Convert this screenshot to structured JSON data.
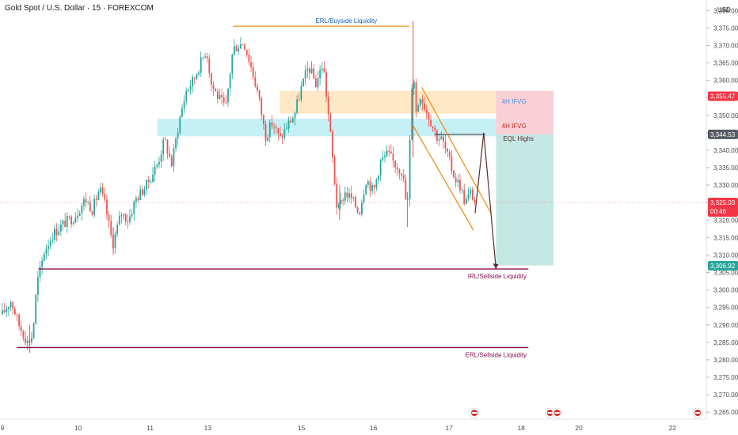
{
  "header": {
    "symbol_title": "Gold Spot / U.S. Dollar · 15 · FOREXCOM",
    "currency": "USD"
  },
  "colors": {
    "up": "#26a69a",
    "down": "#ef5350",
    "orange": "#f0901e",
    "darkred": "#880e4f",
    "red_label": "#f23645",
    "blue_zone": "#b2ebf2",
    "orange_zone": "#ffe0b2",
    "pink_zone": "#f8c4cb",
    "teal_zone": "#b2dfdb",
    "pink_text": "#e57373",
    "blue_text": "#1e88e5"
  },
  "chart_data": {
    "type": "candlestick",
    "title": "Gold Spot / U.S. Dollar · 15 · FOREXCOM",
    "ylim": [
      3263,
      3383
    ],
    "y_ticks": [
      3380,
      3375,
      3370,
      3365,
      3360,
      3355,
      3350,
      3345,
      3340,
      3335,
      3330,
      3325,
      3320,
      3315,
      3310,
      3305,
      3300,
      3295,
      3290,
      3285,
      3280,
      3275,
      3270,
      3265
    ],
    "y_tick_labels": [
      "3,380.00",
      "3,375.00",
      "3,370.00",
      "3,365.00",
      "3,360.00",
      "3,355.00",
      "3,350.00",
      "3,345.00",
      "3,340.00",
      "3,335.00",
      "3,330.00",
      "3,325.00",
      "3,320.00",
      "3,315.00",
      "3,310.00",
      "3,305.00",
      "3,300.00",
      "3,295.00",
      "3,290.00",
      "3,285.00",
      "3,280.00",
      "3,275.00",
      "3,270.00",
      "3,265.00"
    ],
    "x_ticks": [
      {
        "label": "9",
        "t": 0
      },
      {
        "label": "10",
        "t": 10.5
      },
      {
        "label": "11",
        "t": 20.5
      },
      {
        "label": "13",
        "t": 28.5
      },
      {
        "label": "15",
        "t": 41.5
      },
      {
        "label": "16",
        "t": 51.5
      },
      {
        "label": "17",
        "t": 62
      },
      {
        "label": "18",
        "t": 72
      },
      {
        "label": "20",
        "t": 80
      },
      {
        "label": "22",
        "t": 93
      }
    ],
    "anchors": [
      [
        0,
        3293
      ],
      [
        1.2,
        3297
      ],
      [
        2.3,
        3290
      ],
      [
        3.5,
        3285
      ],
      [
        4.2,
        3287
      ],
      [
        4.8,
        3302
      ],
      [
        5.3,
        3306
      ],
      [
        5.8,
        3311
      ],
      [
        7,
        3316
      ],
      [
        8.5,
        3319
      ],
      [
        10,
        3321
      ],
      [
        11.5,
        3326
      ],
      [
        12.5,
        3323
      ],
      [
        13.5,
        3329
      ],
      [
        14.3,
        3324
      ],
      [
        15.3,
        3313
      ],
      [
        16.5,
        3322
      ],
      [
        17.5,
        3320
      ],
      [
        18.5,
        3326
      ],
      [
        20,
        3330
      ],
      [
        21.5,
        3336
      ],
      [
        22.5,
        3343
      ],
      [
        23.5,
        3336
      ],
      [
        24.5,
        3348
      ],
      [
        25.5,
        3357
      ],
      [
        26.5,
        3360
      ],
      [
        27.5,
        3365
      ],
      [
        28.3,
        3369
      ],
      [
        29,
        3359
      ],
      [
        30,
        3355
      ],
      [
        31,
        3352
      ],
      [
        32,
        3369
      ],
      [
        33.5,
        3371
      ],
      [
        34.5,
        3364
      ],
      [
        35.5,
        3356
      ],
      [
        36.5,
        3344
      ],
      [
        37.5,
        3348
      ],
      [
        38.5,
        3343
      ],
      [
        39.5,
        3347
      ],
      [
        40.5,
        3350
      ],
      [
        41.5,
        3358
      ],
      [
        42.5,
        3364
      ],
      [
        43.5,
        3359
      ],
      [
        44.5,
        3365
      ],
      [
        45.5,
        3345
      ],
      [
        46.5,
        3322
      ],
      [
        47.5,
        3328
      ],
      [
        48.5,
        3326
      ],
      [
        49.5,
        3322
      ],
      [
        50.5,
        3332
      ],
      [
        51.5,
        3328
      ],
      [
        52.5,
        3337
      ],
      [
        53.5,
        3339
      ],
      [
        54.5,
        3336
      ],
      [
        55.5,
        3334
      ],
      [
        56.2,
        3322
      ],
      [
        57,
        3368
      ],
      [
        57.3,
        3350
      ],
      [
        58,
        3356
      ],
      [
        58.7,
        3352
      ],
      [
        59.5,
        3348
      ],
      [
        60.3,
        3344
      ],
      [
        61,
        3343
      ],
      [
        62,
        3337
      ],
      [
        62.8,
        3332
      ],
      [
        63.5,
        3330
      ],
      [
        64.2,
        3325
      ],
      [
        65,
        3328
      ],
      [
        65.6,
        3325
      ]
    ],
    "spikes": [
      {
        "t": 57,
        "high": 3377,
        "low": 3338
      },
      {
        "t": 56.2,
        "high": 3328,
        "low": 3318
      },
      {
        "t": 3.8,
        "high": 3290,
        "low": 3282
      },
      {
        "t": 46.8,
        "high": 3330,
        "low": 3320
      },
      {
        "t": 15.4,
        "high": 3318,
        "low": 3310
      }
    ],
    "zones": [
      {
        "name": "orange-fvg",
        "t0": 38.5,
        "t1": 68.5,
        "top": 3357,
        "bottom": 3350.5
      },
      {
        "name": "blue-fvg",
        "t0": 21.5,
        "t1": 68.5,
        "top": 3349,
        "bottom": 3344
      },
      {
        "name": "pink-stop",
        "t0": 68.5,
        "t1": 76.5,
        "top": 3357,
        "bottom": 3344.5
      },
      {
        "name": "teal-target",
        "t0": 68.5,
        "t1": 76.5,
        "top": 3344.5,
        "bottom": 3307
      }
    ],
    "lines": [
      {
        "name": "erl-buyside",
        "t0": 32,
        "t1": 56.5,
        "price": 3375.5
      },
      {
        "name": "irl-sellside",
        "t0": 5,
        "t1": 73,
        "price": 3306
      },
      {
        "name": "erl-sellside",
        "t0": 2,
        "t1": 73,
        "price": 3283.5
      },
      {
        "name": "eql-highs",
        "t0": 60,
        "t1": 67,
        "price": 3344.5
      }
    ],
    "annotations": {
      "erl_buyside": "ERL/Buyside Liquidity",
      "irl_sellside": "IRL/Sellside Liquidity",
      "erl_sellside": "ERL/Sellside Liquidity",
      "fvg_upper": "4H IFVG",
      "fvg_lower": "4H IFVG",
      "eql_highs": "EQL Highs"
    },
    "price_labels": [
      {
        "name": "stop-price",
        "price": 3355.47,
        "text": "3,355.47"
      },
      {
        "name": "entry-price",
        "price": 3344.53,
        "text": "3,344.53"
      },
      {
        "name": "current-price",
        "price": 3325.03,
        "text": "3,325.03",
        "sub": "00:46"
      },
      {
        "name": "target-price",
        "price": 3306.92,
        "text": "3,306.92"
      }
    ],
    "current_price": 3325.03,
    "event_markers_t": [
      65.5,
      76,
      77,
      96.5
    ]
  }
}
